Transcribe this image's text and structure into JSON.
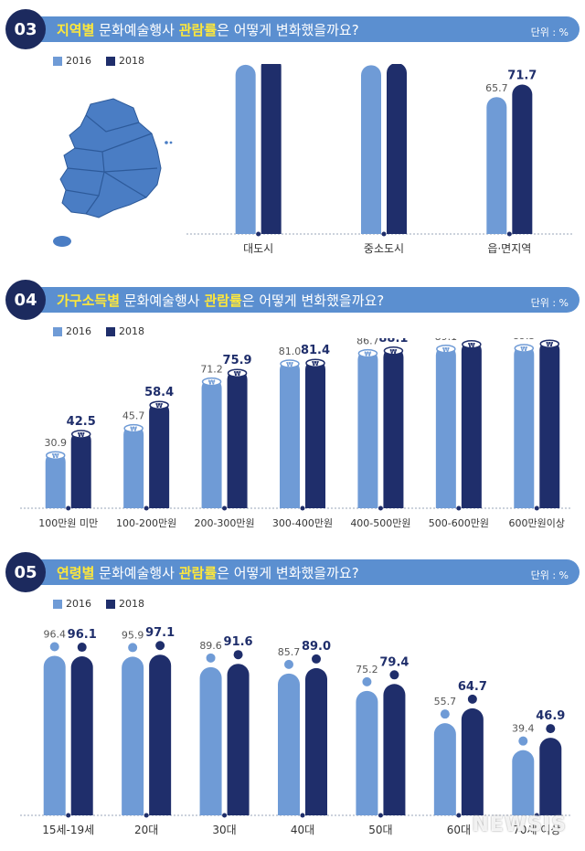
{
  "colors": {
    "c2016": "#6f9bd6",
    "c2018": "#1f2e6b",
    "header": "#5b8fd0",
    "circle": "#1c2a5e",
    "highlight": "#ffe83a"
  },
  "legend": {
    "y2016": "2016",
    "y2018": "2018"
  },
  "unit": "단위 : %",
  "sections": [
    {
      "number": "03",
      "title_highlight": "지역별",
      "title_rest": " 문화예술행사 ",
      "title_bold": "관람률",
      "title_end": "은 어떻게 변화했을까요?"
    },
    {
      "number": "04",
      "title_highlight": "가구소득별",
      "title_rest": " 문화예술행사 ",
      "title_bold": "관람률",
      "title_end": "은 어떻게 변화했을까요?"
    },
    {
      "number": "05",
      "title_highlight": "연령별",
      "title_rest": " 문화예술행사 ",
      "title_bold": "관람률",
      "title_end": "은 어떻게 변화했을까요?"
    }
  ],
  "chart_data": [
    {
      "type": "bar",
      "categories": [
        "대도시",
        "중소도시",
        "읍·면지역"
      ],
      "series": [
        {
          "name": "2016",
          "values": [
            81.2,
            81.0,
            65.7
          ]
        },
        {
          "name": "2018",
          "values": [
            85.2,
            82.1,
            71.7
          ]
        }
      ],
      "title": "지역별 문화예술행사 관람률은 어떻게 변화했을까요?",
      "ylabel": "단위 : %"
    },
    {
      "type": "bar",
      "categories": [
        "100만원 미만",
        "100-200만원",
        "200-300만원",
        "300-400만원",
        "400-500만원",
        "500-600만원",
        "600만원이상"
      ],
      "series": [
        {
          "name": "2016",
          "values": [
            30.9,
            45.7,
            71.2,
            81.0,
            86.7,
            89.1,
            89.5
          ]
        },
        {
          "name": "2018",
          "values": [
            42.5,
            58.4,
            75.9,
            81.4,
            88.1,
            91.6,
            91.9
          ]
        }
      ],
      "title": "가구소득별 문화예술행사 관람률은 어떻게 변화했을까요?",
      "ylabel": "단위 : %"
    },
    {
      "type": "bar",
      "categories": [
        "15세-19세",
        "20대",
        "30대",
        "40대",
        "50대",
        "60대",
        "70세 이상"
      ],
      "series": [
        {
          "name": "2016",
          "values": [
            96.4,
            95.9,
            89.6,
            85.7,
            75.2,
            55.7,
            39.4
          ]
        },
        {
          "name": "2018",
          "values": [
            96.1,
            97.1,
            91.6,
            89.0,
            79.4,
            64.7,
            46.9
          ]
        }
      ],
      "title": "연령별 문화예술행사 관람률은 어떻게 변화했을까요?",
      "ylabel": "단위 : %"
    }
  ],
  "watermark": "NEWSIS"
}
